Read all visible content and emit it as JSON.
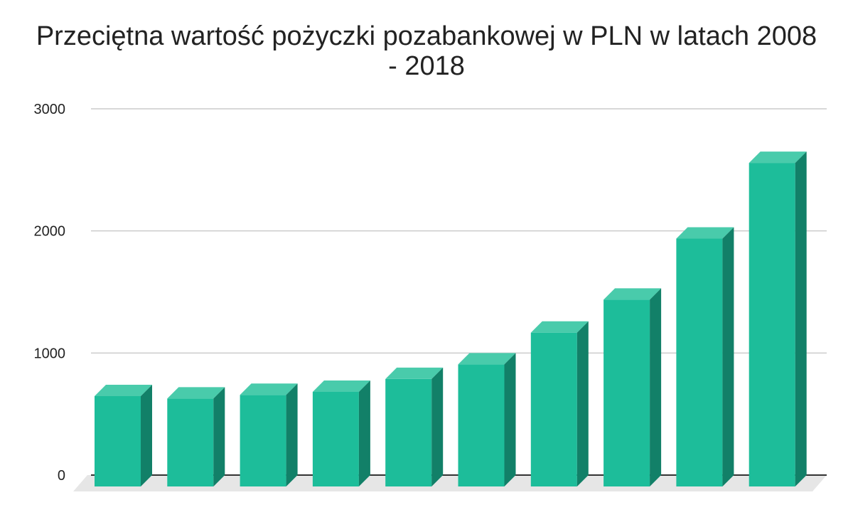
{
  "chart_data": {
    "type": "bar",
    "title": "Przeciętna wartość pożyczki pozabankowej w PLN w latach 2008 - 2018",
    "xlabel": "",
    "ylabel": "",
    "categories": [
      "",
      "",
      "",
      "",
      "",
      "",
      "",
      "",
      "",
      ""
    ],
    "values": [
      740,
      720,
      750,
      775,
      880,
      1000,
      1260,
      1530,
      2030,
      2650
    ],
    "ylim": [
      0,
      3000
    ],
    "yticks": [
      "0",
      "1000",
      "2000",
      "3000"
    ],
    "grid": true,
    "legend": "none",
    "colors": {
      "bar_front": "#1dbd9a",
      "bar_top": "#49cbab",
      "bar_side": "#128068",
      "floor": "#e6e6e6",
      "grid": "#cccccc",
      "axis": "#333333"
    }
  }
}
